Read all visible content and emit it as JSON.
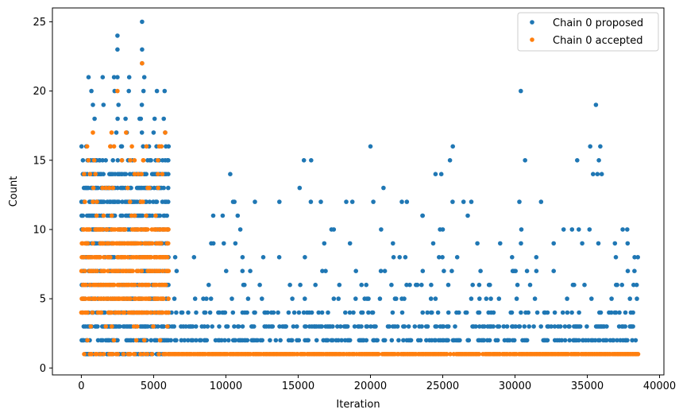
{
  "chart_data": {
    "type": "scatter",
    "title": "",
    "xlabel": "Iteration",
    "ylabel": "Count",
    "xlim": [
      -2000,
      40300
    ],
    "ylim": [
      -0.5,
      26
    ],
    "x_ticks": [
      0,
      5000,
      10000,
      15000,
      20000,
      25000,
      30000,
      35000,
      40000
    ],
    "y_ticks": [
      0,
      5,
      10,
      15,
      20,
      25
    ],
    "legend_position": "top-right",
    "grid": false,
    "series": [
      {
        "name": "Chain 0 proposed",
        "color": "#1f77b4",
        "regions": [
          {
            "x_range": [
              0,
              6000
            ],
            "dense_y": [
              1,
              2,
              3,
              4,
              5,
              6,
              7,
              8,
              9,
              10,
              11,
              12,
              13,
              14
            ],
            "sparse_y": [
              15,
              16,
              17,
              18,
              19,
              20,
              21
            ],
            "density": 0.55
          },
          {
            "x_range": [
              6000,
              38500
            ],
            "dense_y": [
              2,
              3
            ],
            "sparse_y": [
              4,
              5,
              6,
              7,
              8,
              9,
              10,
              11,
              12
            ],
            "density": 0.35
          }
        ],
        "points": [
          [
            2500,
            24
          ],
          [
            4200,
            25
          ],
          [
            2500,
            23
          ],
          [
            4200,
            23
          ],
          [
            4200,
            22
          ],
          [
            2500,
            21
          ],
          [
            500,
            21
          ],
          [
            30400,
            20
          ],
          [
            700,
            20
          ],
          [
            2300,
            20
          ],
          [
            4300,
            20
          ],
          [
            35600,
            19
          ],
          [
            20000,
            16
          ],
          [
            25700,
            16
          ],
          [
            35200,
            16
          ],
          [
            35900,
            16
          ],
          [
            5700,
            18
          ],
          [
            5000,
            17
          ],
          [
            5800,
            17
          ],
          [
            10300,
            14
          ],
          [
            15400,
            15
          ],
          [
            15900,
            15
          ],
          [
            24500,
            14
          ],
          [
            24900,
            14
          ],
          [
            25500,
            15
          ],
          [
            30700,
            15
          ],
          [
            34300,
            15
          ],
          [
            35800,
            15
          ],
          [
            10500,
            12
          ],
          [
            13700,
            12
          ],
          [
            15100,
            13
          ],
          [
            20200,
            12
          ],
          [
            20900,
            13
          ],
          [
            23600,
            11
          ],
          [
            30300,
            12
          ],
          [
            31800,
            12
          ],
          [
            35400,
            14
          ],
          [
            35700,
            14
          ],
          [
            36000,
            14
          ],
          [
            37800,
            7
          ],
          [
            38200,
            6
          ],
          [
            38500,
            8
          ],
          [
            22500,
            6
          ],
          [
            28200,
            6
          ]
        ]
      },
      {
        "name": "Chain 0 accepted",
        "color": "#ff7f0e",
        "regions": [
          {
            "x_range": [
              0,
              6000
            ],
            "dense_y": [
              4,
              5,
              6,
              7,
              8,
              9,
              10
            ],
            "sparse_y": [
              1,
              2,
              3,
              11,
              12,
              13,
              14,
              15,
              16,
              17
            ],
            "density": 0.6
          },
          {
            "x_range": [
              6000,
              38500
            ],
            "dense_y": [
              1
            ],
            "sparse_y": [],
            "density": 0.9
          }
        ],
        "points": [
          [
            4200,
            22
          ],
          [
            2500,
            20
          ],
          [
            800,
            17
          ],
          [
            3100,
            17
          ],
          [
            5800,
            17
          ],
          [
            400,
            16
          ],
          [
            2000,
            16
          ],
          [
            3500,
            16
          ],
          [
            4300,
            15
          ],
          [
            5300,
            15
          ],
          [
            2800,
            15
          ],
          [
            600,
            14
          ],
          [
            1700,
            13
          ],
          [
            3200,
            13
          ],
          [
            4700,
            13
          ],
          [
            5600,
            14
          ],
          [
            200,
            1
          ],
          [
            700,
            1
          ],
          [
            2100,
            1
          ],
          [
            2400,
            1
          ],
          [
            3300,
            1
          ]
        ]
      }
    ]
  }
}
